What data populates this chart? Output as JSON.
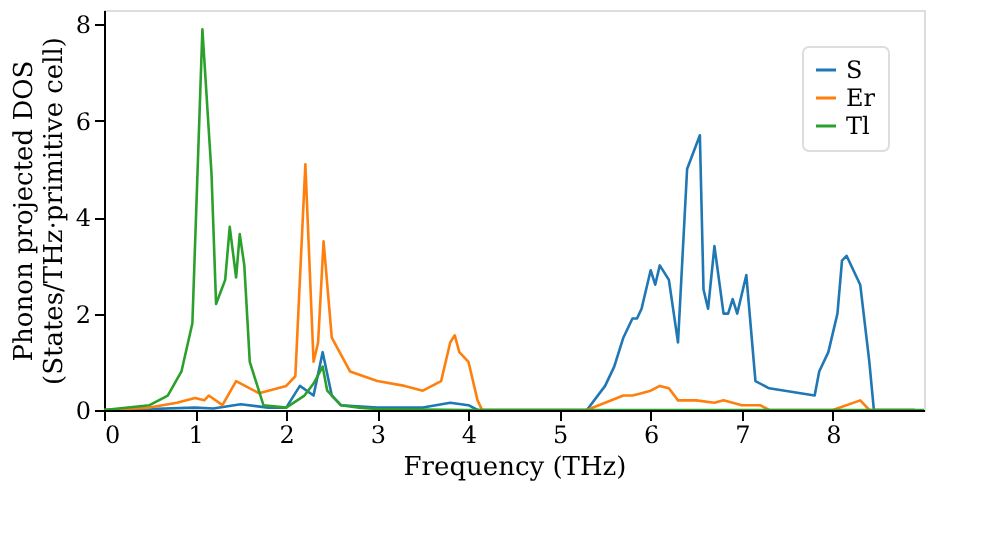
{
  "chart_data": {
    "type": "line",
    "xlabel": "Frequency (THz)",
    "ylabel": "Phonon projected DOS\n(States/THz·primitive cell)",
    "xlim": [
      0,
      9
    ],
    "ylim": [
      0,
      8.3
    ],
    "xticks": [
      0,
      1,
      2,
      3,
      4,
      5,
      6,
      7,
      8
    ],
    "yticks": [
      0,
      2,
      4,
      6,
      8
    ],
    "grid": false,
    "legend": "top right",
    "line_style": "solid",
    "marker": "none",
    "series": [
      {
        "name": "S",
        "color": "#1f77b4",
        "x": [
          0,
          0.5,
          1.0,
          1.2,
          1.5,
          1.8,
          2.0,
          2.15,
          2.3,
          2.4,
          2.5,
          2.6,
          3.0,
          3.5,
          3.8,
          4.0,
          4.1,
          5.3,
          5.5,
          5.6,
          5.7,
          5.8,
          5.85,
          5.9,
          6.0,
          6.05,
          6.1,
          6.2,
          6.3,
          6.4,
          6.54,
          6.58,
          6.63,
          6.7,
          6.8,
          6.85,
          6.9,
          6.95,
          7.05,
          7.15,
          7.3,
          7.8,
          7.85,
          7.95,
          8.05,
          8.1,
          8.15,
          8.3,
          8.4,
          8.45,
          8.9
        ],
        "values": [
          0,
          0.02,
          0.05,
          0.03,
          0.12,
          0.05,
          0.05,
          0.5,
          0.3,
          1.2,
          0.3,
          0.1,
          0.05,
          0.05,
          0.15,
          0.1,
          0,
          0,
          0.5,
          0.9,
          1.5,
          1.9,
          1.9,
          2.1,
          2.9,
          2.6,
          3.0,
          2.7,
          1.4,
          5.0,
          5.7,
          2.5,
          2.1,
          3.4,
          2.0,
          2.0,
          2.3,
          2.0,
          2.8,
          0.6,
          0.45,
          0.3,
          0.8,
          1.2,
          2.0,
          3.1,
          3.2,
          2.6,
          1.0,
          0,
          0
        ]
      },
      {
        "name": "Er",
        "color": "#ff7f0e",
        "x": [
          0,
          0.5,
          0.8,
          1.0,
          1.1,
          1.15,
          1.3,
          1.45,
          1.6,
          1.7,
          2.0,
          2.1,
          2.21,
          2.3,
          2.35,
          2.41,
          2.5,
          2.7,
          3.0,
          3.3,
          3.5,
          3.7,
          3.8,
          3.85,
          3.9,
          4.0,
          4.1,
          4.15,
          5.3,
          5.5,
          5.7,
          5.8,
          5.9,
          6.0,
          6.1,
          6.2,
          6.3,
          6.5,
          6.7,
          6.8,
          7.0,
          7.2,
          7.3,
          8.0,
          8.3,
          8.4,
          8.9
        ],
        "values": [
          0,
          0.05,
          0.15,
          0.25,
          0.2,
          0.3,
          0.1,
          0.6,
          0.45,
          0.35,
          0.5,
          0.7,
          5.1,
          1.0,
          1.4,
          3.5,
          1.5,
          0.8,
          0.6,
          0.5,
          0.4,
          0.6,
          1.4,
          1.55,
          1.2,
          1.0,
          0.2,
          0,
          0,
          0.15,
          0.3,
          0.3,
          0.35,
          0.4,
          0.5,
          0.45,
          0.2,
          0.2,
          0.15,
          0.2,
          0.1,
          0.1,
          0,
          0,
          0.2,
          0,
          0
        ]
      },
      {
        "name": "Tl",
        "color": "#2ca02c",
        "x": [
          0,
          0.5,
          0.7,
          0.85,
          0.97,
          1.08,
          1.18,
          1.23,
          1.33,
          1.38,
          1.45,
          1.49,
          1.54,
          1.6,
          1.75,
          2.0,
          2.2,
          2.3,
          2.4,
          2.45,
          2.6,
          2.8,
          3.0,
          4.0,
          9.0
        ],
        "values": [
          0,
          0.1,
          0.3,
          0.8,
          1.8,
          7.9,
          4.9,
          2.2,
          2.7,
          3.8,
          2.75,
          3.65,
          3.0,
          1.0,
          0.1,
          0.05,
          0.3,
          0.55,
          0.9,
          0.4,
          0.1,
          0.05,
          0.02,
          0,
          0
        ]
      }
    ]
  }
}
